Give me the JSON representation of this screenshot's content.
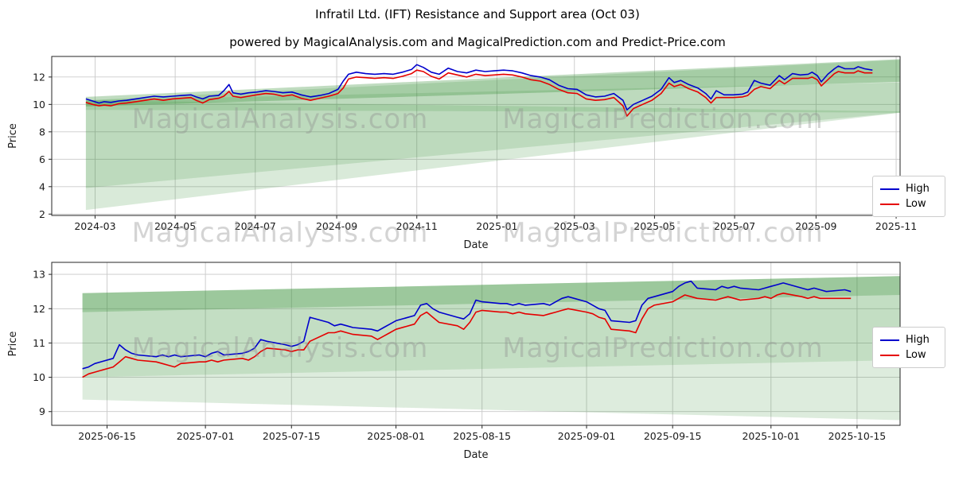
{
  "title": "Infratil Ltd. (IFT) Resistance and Support area (Oct 03)",
  "subtitle": "powered by MagicalAnalysis.com and MagicalPrediction.com and Predict-Price.com",
  "watermark": {
    "left": "MagicalAnalysis.com",
    "right": "MagicalPrediction.com"
  },
  "legend": {
    "entries": [
      {
        "label": "High",
        "color": "#0000cd"
      },
      {
        "label": "Low",
        "color": "#e50000"
      }
    ]
  },
  "colors": {
    "high": "#0000cd",
    "low": "#e50000",
    "band": "#2e8b2e",
    "grid": "#c9c9c9",
    "axis": "#262626",
    "tick_text": "#1a1a1a"
  },
  "chart_data": [
    {
      "type": "line",
      "xlabel": "Date",
      "ylabel": "Price",
      "xlim": [
        "2024-01-28",
        "2025-11-04"
      ],
      "ylim": [
        1.9,
        13.5
      ],
      "yticks": [
        2,
        4,
        6,
        8,
        10,
        12
      ],
      "xticks": [
        {
          "pos": "2024-03-01",
          "label": "2024-03"
        },
        {
          "pos": "2024-05-01",
          "label": "2024-05"
        },
        {
          "pos": "2024-07-01",
          "label": "2024-07"
        },
        {
          "pos": "2024-09-01",
          "label": "2024-09"
        },
        {
          "pos": "2024-11-01",
          "label": "2024-11"
        },
        {
          "pos": "2025-01-01",
          "label": "2025-01"
        },
        {
          "pos": "2025-03-01",
          "label": "2025-03"
        },
        {
          "pos": "2025-05-01",
          "label": "2025-05"
        },
        {
          "pos": "2025-07-01",
          "label": "2025-07"
        },
        {
          "pos": "2025-09-01",
          "label": "2025-09"
        },
        {
          "pos": "2025-11-01",
          "label": "2025-11"
        }
      ],
      "bands": [
        {
          "opacity": 0.18,
          "points": [
            [
              "2024-02-23",
              2.3
            ],
            [
              "2024-02-23",
              10.3
            ],
            [
              "2025-11-04",
              13.25
            ],
            [
              "2025-11-04",
              9.4
            ]
          ]
        },
        {
          "opacity": 0.16,
          "points": [
            [
              "2024-02-23",
              3.9
            ],
            [
              "2024-02-23",
              10.3
            ],
            [
              "2025-11-04",
              9.5
            ],
            [
              "2025-11-04",
              9.4
            ]
          ]
        },
        {
          "opacity": 0.16,
          "points": [
            [
              "2024-02-23",
              9.6
            ],
            [
              "2024-02-23",
              10.3
            ],
            [
              "2025-11-04",
              11.6
            ],
            [
              "2025-11-04",
              9.4
            ]
          ]
        },
        {
          "opacity": 0.3,
          "points": [
            [
              "2024-02-23",
              9.85
            ],
            [
              "2024-02-23",
              10.55
            ],
            [
              "2025-11-04",
              13.3
            ],
            [
              "2025-11-04",
              11.65
            ]
          ]
        }
      ],
      "dates": [
        "2024-02-23",
        "2024-02-28",
        "2024-03-04",
        "2024-03-08",
        "2024-03-13",
        "2024-03-19",
        "2024-03-25",
        "2024-04-01",
        "2024-04-08",
        "2024-04-15",
        "2024-04-22",
        "2024-04-29",
        "2024-05-06",
        "2024-05-13",
        "2024-05-17",
        "2024-05-22",
        "2024-05-27",
        "2024-06-03",
        "2024-06-07",
        "2024-06-11",
        "2024-06-14",
        "2024-06-20",
        "2024-06-26",
        "2024-07-02",
        "2024-07-09",
        "2024-07-15",
        "2024-07-22",
        "2024-07-29",
        "2024-08-05",
        "2024-08-12",
        "2024-08-19",
        "2024-08-26",
        "2024-09-02",
        "2024-09-06",
        "2024-09-10",
        "2024-09-16",
        "2024-09-23",
        "2024-09-30",
        "2024-10-07",
        "2024-10-14",
        "2024-10-21",
        "2024-10-28",
        "2024-11-01",
        "2024-11-06",
        "2024-11-12",
        "2024-11-18",
        "2024-11-25",
        "2024-12-02",
        "2024-12-09",
        "2024-12-16",
        "2024-12-23",
        "2024-12-30",
        "2025-01-06",
        "2025-01-13",
        "2025-01-20",
        "2025-01-27",
        "2025-02-03",
        "2025-02-10",
        "2025-02-17",
        "2025-02-24",
        "2025-03-03",
        "2025-03-10",
        "2025-03-17",
        "2025-03-24",
        "2025-03-31",
        "2025-04-07",
        "2025-04-10",
        "2025-04-15",
        "2025-04-22",
        "2025-04-29",
        "2025-05-06",
        "2025-05-12",
        "2025-05-16",
        "2025-05-21",
        "2025-05-27",
        "2025-06-03",
        "2025-06-09",
        "2025-06-13",
        "2025-06-17",
        "2025-06-23",
        "2025-06-30",
        "2025-07-07",
        "2025-07-11",
        "2025-07-16",
        "2025-07-21",
        "2025-07-28",
        "2025-08-04",
        "2025-08-08",
        "2025-08-14",
        "2025-08-20",
        "2025-08-26",
        "2025-08-29",
        "2025-09-02",
        "2025-09-05",
        "2025-09-10",
        "2025-09-15",
        "2025-09-18",
        "2025-09-23",
        "2025-09-30",
        "2025-10-03",
        "2025-10-08",
        "2025-10-14"
      ],
      "series": [
        {
          "name": "High",
          "color": "#0000cd",
          "values": [
            10.4,
            10.25,
            10.1,
            10.2,
            10.15,
            10.25,
            10.3,
            10.4,
            10.5,
            10.6,
            10.55,
            10.6,
            10.65,
            10.7,
            10.55,
            10.4,
            10.6,
            10.65,
            11.0,
            11.45,
            10.85,
            10.75,
            10.85,
            10.9,
            11.0,
            10.95,
            10.85,
            10.9,
            10.7,
            10.55,
            10.65,
            10.8,
            11.1,
            11.7,
            12.2,
            12.35,
            12.25,
            12.2,
            12.25,
            12.2,
            12.35,
            12.55,
            12.9,
            12.7,
            12.35,
            12.2,
            12.65,
            12.4,
            12.3,
            12.5,
            12.4,
            12.45,
            12.5,
            12.45,
            12.3,
            12.1,
            12.0,
            11.8,
            11.4,
            11.15,
            11.1,
            10.7,
            10.55,
            10.6,
            10.8,
            10.3,
            9.6,
            10.0,
            10.3,
            10.6,
            11.1,
            11.95,
            11.6,
            11.75,
            11.45,
            11.2,
            10.8,
            10.4,
            11.0,
            10.7,
            10.7,
            10.75,
            10.9,
            11.75,
            11.55,
            11.4,
            12.1,
            11.8,
            12.25,
            12.15,
            12.2,
            12.35,
            12.1,
            11.65,
            12.2,
            12.6,
            12.8,
            12.6,
            12.6,
            12.75,
            12.6,
            12.5
          ]
        },
        {
          "name": "Low",
          "color": "#e50000",
          "values": [
            10.15,
            10.0,
            9.9,
            9.95,
            9.9,
            10.05,
            10.1,
            10.2,
            10.3,
            10.4,
            10.3,
            10.4,
            10.45,
            10.5,
            10.3,
            10.1,
            10.35,
            10.45,
            10.6,
            10.95,
            10.6,
            10.5,
            10.6,
            10.7,
            10.8,
            10.75,
            10.6,
            10.7,
            10.45,
            10.3,
            10.45,
            10.6,
            10.8,
            11.2,
            11.85,
            12.0,
            11.95,
            11.9,
            11.95,
            11.9,
            12.05,
            12.25,
            12.5,
            12.4,
            12.05,
            11.85,
            12.3,
            12.15,
            12.0,
            12.2,
            12.1,
            12.15,
            12.2,
            12.15,
            12.0,
            11.8,
            11.7,
            11.45,
            11.1,
            10.85,
            10.8,
            10.4,
            10.3,
            10.35,
            10.5,
            9.9,
            9.15,
            9.7,
            10.0,
            10.3,
            10.8,
            11.55,
            11.3,
            11.45,
            11.15,
            10.9,
            10.5,
            10.1,
            10.5,
            10.5,
            10.5,
            10.55,
            10.65,
            11.1,
            11.3,
            11.15,
            11.75,
            11.5,
            11.9,
            11.9,
            11.9,
            12.0,
            11.8,
            11.35,
            11.8,
            12.25,
            12.4,
            12.3,
            12.3,
            12.45,
            12.3,
            12.3
          ]
        }
      ]
    },
    {
      "type": "line",
      "xlabel": "Date",
      "ylabel": "Price",
      "xlim": [
        "2025-06-06",
        "2025-10-22"
      ],
      "ylim": [
        8.6,
        13.35
      ],
      "yticks": [
        9,
        10,
        11,
        12,
        13
      ],
      "xticks": [
        {
          "pos": "2025-06-15",
          "label": "2025-06-15"
        },
        {
          "pos": "2025-07-01",
          "label": "2025-07-01"
        },
        {
          "pos": "2025-07-15",
          "label": "2025-07-15"
        },
        {
          "pos": "2025-08-01",
          "label": "2025-08-01"
        },
        {
          "pos": "2025-08-15",
          "label": "2025-08-15"
        },
        {
          "pos": "2025-09-01",
          "label": "2025-09-01"
        },
        {
          "pos": "2025-09-15",
          "label": "2025-09-15"
        },
        {
          "pos": "2025-10-01",
          "label": "2025-10-01"
        },
        {
          "pos": "2025-10-15",
          "label": "2025-10-15"
        }
      ],
      "bands": [
        {
          "opacity": 0.16,
          "points": [
            [
              "2025-06-11",
              9.35
            ],
            [
              "2025-06-11",
              12.45
            ],
            [
              "2025-10-22",
              12.95
            ],
            [
              "2025-10-22",
              8.75
            ]
          ]
        },
        {
          "opacity": 0.14,
          "points": [
            [
              "2025-06-11",
              10.0
            ],
            [
              "2025-06-11",
              12.45
            ],
            [
              "2025-10-22",
              12.95
            ],
            [
              "2025-10-22",
              10.5
            ]
          ]
        },
        {
          "opacity": 0.26,
          "points": [
            [
              "2025-06-11",
              11.9
            ],
            [
              "2025-06-11",
              12.45
            ],
            [
              "2025-10-22",
              12.95
            ],
            [
              "2025-10-22",
              12.4
            ]
          ]
        }
      ],
      "dates": [
        "2025-06-11",
        "2025-06-12",
        "2025-06-13",
        "2025-06-16",
        "2025-06-17",
        "2025-06-18",
        "2025-06-19",
        "2025-06-20",
        "2025-06-23",
        "2025-06-24",
        "2025-06-25",
        "2025-06-26",
        "2025-06-27",
        "2025-06-30",
        "2025-07-01",
        "2025-07-02",
        "2025-07-03",
        "2025-07-04",
        "2025-07-07",
        "2025-07-08",
        "2025-07-09",
        "2025-07-10",
        "2025-07-11",
        "2025-07-14",
        "2025-07-15",
        "2025-07-16",
        "2025-07-17",
        "2025-07-18",
        "2025-07-21",
        "2025-07-22",
        "2025-07-23",
        "2025-07-24",
        "2025-07-25",
        "2025-07-28",
        "2025-07-29",
        "2025-07-30",
        "2025-07-31",
        "2025-08-01",
        "2025-08-04",
        "2025-08-05",
        "2025-08-06",
        "2025-08-07",
        "2025-08-08",
        "2025-08-11",
        "2025-08-12",
        "2025-08-13",
        "2025-08-14",
        "2025-08-15",
        "2025-08-18",
        "2025-08-19",
        "2025-08-20",
        "2025-08-21",
        "2025-08-22",
        "2025-08-25",
        "2025-08-26",
        "2025-08-27",
        "2025-08-28",
        "2025-08-29",
        "2025-09-01",
        "2025-09-02",
        "2025-09-03",
        "2025-09-04",
        "2025-09-05",
        "2025-09-08",
        "2025-09-09",
        "2025-09-10",
        "2025-09-11",
        "2025-09-12",
        "2025-09-15",
        "2025-09-16",
        "2025-09-17",
        "2025-09-18",
        "2025-09-19",
        "2025-09-22",
        "2025-09-23",
        "2025-09-24",
        "2025-09-25",
        "2025-09-26",
        "2025-09-29",
        "2025-09-30",
        "2025-10-01",
        "2025-10-02",
        "2025-10-03",
        "2025-10-06",
        "2025-10-07",
        "2025-10-08",
        "2025-10-09",
        "2025-10-10",
        "2025-10-13",
        "2025-10-14"
      ],
      "series": [
        {
          "name": "High",
          "color": "#0000cd",
          "values": [
            10.25,
            10.3,
            10.4,
            10.55,
            10.95,
            10.8,
            10.7,
            10.65,
            10.6,
            10.65,
            10.6,
            10.65,
            10.6,
            10.65,
            10.6,
            10.7,
            10.75,
            10.65,
            10.7,
            10.75,
            10.85,
            11.1,
            11.05,
            10.95,
            10.9,
            10.95,
            11.05,
            11.75,
            11.6,
            11.5,
            11.55,
            11.5,
            11.45,
            11.4,
            11.35,
            11.45,
            11.55,
            11.65,
            11.8,
            12.1,
            12.15,
            12.0,
            11.9,
            11.75,
            11.7,
            11.85,
            12.25,
            12.2,
            12.15,
            12.15,
            12.1,
            12.15,
            12.1,
            12.15,
            12.1,
            12.2,
            12.3,
            12.35,
            12.2,
            12.1,
            12.0,
            11.95,
            11.65,
            11.6,
            11.65,
            12.1,
            12.3,
            12.35,
            12.5,
            12.65,
            12.75,
            12.8,
            12.6,
            12.55,
            12.65,
            12.6,
            12.65,
            12.6,
            12.55,
            12.6,
            12.65,
            12.7,
            12.75,
            12.6,
            12.55,
            12.6,
            12.55,
            12.5,
            12.55,
            12.5
          ]
        },
        {
          "name": "Low",
          "color": "#e50000",
          "values": [
            10.0,
            10.1,
            10.15,
            10.3,
            10.45,
            10.6,
            10.55,
            10.5,
            10.45,
            10.4,
            10.35,
            10.3,
            10.4,
            10.45,
            10.45,
            10.5,
            10.45,
            10.5,
            10.55,
            10.5,
            10.6,
            10.75,
            10.85,
            10.8,
            10.75,
            10.8,
            10.8,
            11.05,
            11.3,
            11.3,
            11.35,
            11.3,
            11.25,
            11.2,
            11.1,
            11.2,
            11.3,
            11.4,
            11.55,
            11.8,
            11.9,
            11.75,
            11.6,
            11.5,
            11.4,
            11.6,
            11.9,
            11.95,
            11.9,
            11.9,
            11.85,
            11.9,
            11.85,
            11.8,
            11.85,
            11.9,
            11.95,
            12.0,
            11.9,
            11.85,
            11.75,
            11.7,
            11.4,
            11.35,
            11.3,
            11.7,
            12.0,
            12.1,
            12.2,
            12.3,
            12.4,
            12.35,
            12.3,
            12.25,
            12.3,
            12.35,
            12.3,
            12.25,
            12.3,
            12.35,
            12.3,
            12.4,
            12.45,
            12.35,
            12.3,
            12.35,
            12.3,
            12.3,
            12.3,
            12.3
          ]
        }
      ]
    }
  ]
}
